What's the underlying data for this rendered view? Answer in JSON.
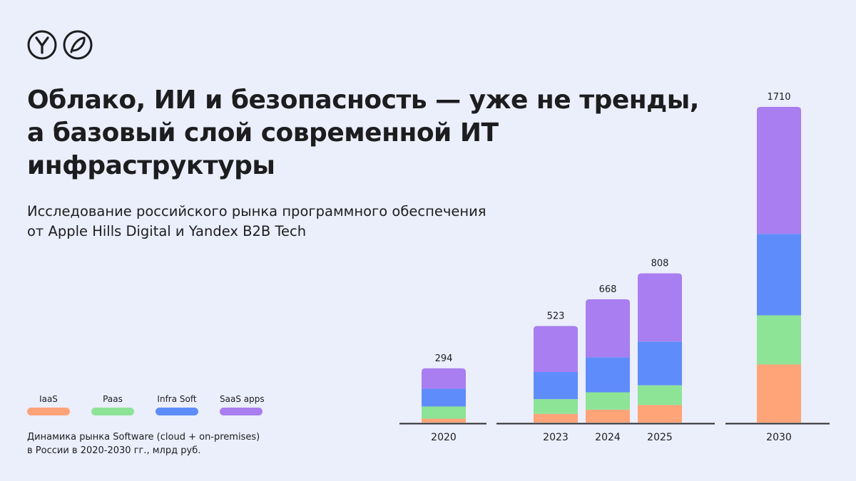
{
  "title": "Облако, ИИ и безопасность — уже не тренды, а базовый слой современной ИТ инфраструктуры",
  "subtitle_line1": "Исследование российского рынка программного обеспечения",
  "subtitle_line2": "от Apple Hills Digital и Yandex B2B Tech",
  "caption_line1": "Динамика рынка Software (cloud + on-premises)",
  "caption_line2": "в России в 2020-2030 гг., млрд руб.",
  "logos": [
    {
      "name": "yandex-logo",
      "glyph": "Y"
    },
    {
      "name": "yandex-cloud-logo",
      "glyph": "leaf"
    }
  ],
  "colors": {
    "background": "#EBEEFB",
    "iaas": "#FFA378",
    "paas": "#8DE497",
    "infra_soft": "#5F8CFB",
    "saas_apps": "#A97EF0",
    "axis": "#2B2B2B"
  },
  "chart_data": {
    "type": "bar",
    "stacked": true,
    "categories": [
      "2020",
      "2023",
      "2024",
      "2025",
      "2030"
    ],
    "totals": [
      294,
      523,
      668,
      808,
      1710
    ],
    "series": [
      {
        "name": "IaaS",
        "values": [
          21,
          47,
          70,
          95,
          315
        ]
      },
      {
        "name": "Paas",
        "values": [
          66,
          80,
          94,
          107,
          266
        ]
      },
      {
        "name": "Infra Soft",
        "values": [
          97,
          147,
          190,
          237,
          441
        ]
      },
      {
        "name": "SaaS apps",
        "values": [
          110,
          249,
          314,
          369,
          688
        ]
      }
    ],
    "title": "",
    "xlabel": "",
    "ylabel": "",
    "ylim": [
      0,
      1800
    ],
    "grid": false,
    "legend_position": "bottom-left"
  }
}
